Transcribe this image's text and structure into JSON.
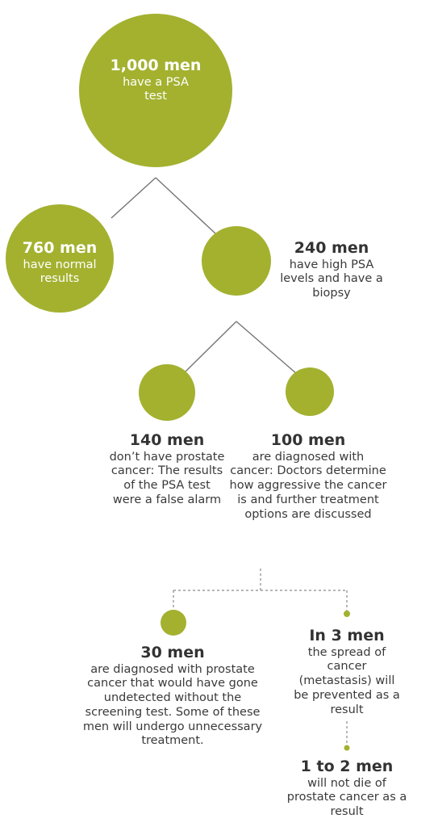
{
  "colors": {
    "circle": "#a3b12f",
    "text": "#3a3a3a",
    "on_circle_text": "#ffffff"
  },
  "nodes": {
    "root": {
      "head": "1,000 men",
      "body": "have a PSA test"
    },
    "normal": {
      "head": "760 men",
      "body": "have normal results"
    },
    "high_psa": {
      "head": "240 men",
      "body": "have high PSA levels and have a biopsy"
    },
    "no_cancer": {
      "head": "140 men",
      "body": "don’t have prostate cancer: The results of the PSA test were a false alarm"
    },
    "diagnosed": {
      "head": "100 men",
      "body": "are diagnosed with cancer: Doctors determine how aggressive the cancer is and further treatment options are discussed"
    },
    "overdiagnosed": {
      "head": "30 men",
      "body": "are diagnosed with prostate cancer that would have gone undetected without the screening test. Some of these men will undergo unnecessary treatment."
    },
    "prevented": {
      "head": "In 3 men",
      "body": "the spread of cancer (metastasis) will be prevented as a result"
    },
    "saved": {
      "head": "1 to 2 men",
      "body": "will not die of prostate cancer as a result"
    }
  }
}
